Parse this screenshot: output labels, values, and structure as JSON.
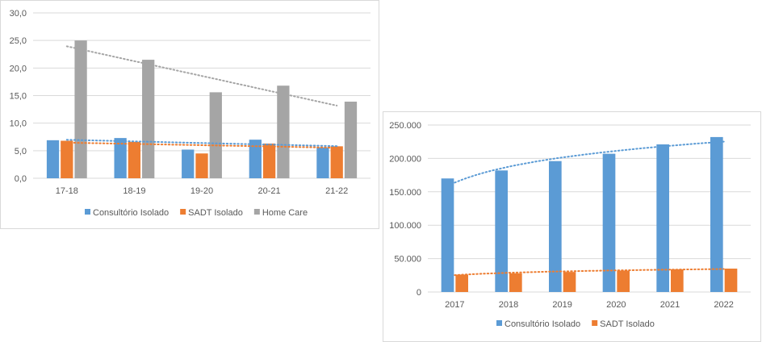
{
  "chart_data": [
    {
      "type": "bar",
      "categories": [
        "17-18",
        "18-19",
        "19-20",
        "20-21",
        "21-22"
      ],
      "series": [
        {
          "name": "Consultório Isolado",
          "color": "#5b9bd5",
          "values": [
            6.9,
            7.3,
            5.2,
            7.0,
            5.6
          ]
        },
        {
          "name": "SADT Isolado",
          "color": "#ed7d31",
          "values": [
            6.8,
            6.6,
            4.5,
            6.3,
            5.8
          ]
        },
        {
          "name": "Home Care",
          "color": "#a5a5a5",
          "values": [
            25.0,
            21.5,
            15.6,
            16.8,
            13.9
          ]
        }
      ],
      "y_ticks": [
        "0,0",
        "5,0",
        "10,0",
        "15,0",
        "20,0",
        "25,0",
        "30,0"
      ],
      "ylim": [
        0,
        30
      ],
      "trendlines": "linear, dotted, one per series",
      "legend_position": "bottom",
      "grid": true
    },
    {
      "type": "bar",
      "categories": [
        "2017",
        "2018",
        "2019",
        "2020",
        "2021",
        "2022"
      ],
      "series": [
        {
          "name": "Consultório Isolado",
          "color": "#5b9bd5",
          "values": [
            170000,
            182000,
            196000,
            207000,
            221000,
            232000
          ]
        },
        {
          "name": "SADT Isolado",
          "color": "#ed7d31",
          "values": [
            26000,
            28000,
            30000,
            32000,
            34000,
            35000
          ]
        }
      ],
      "y_ticks": [
        "0",
        "50.000",
        "100.000",
        "150.000",
        "200.000",
        "250.000"
      ],
      "ylim": [
        0,
        250000
      ],
      "trendlines": "logarithmic, dotted, one per series",
      "legend_position": "bottom",
      "grid": true
    }
  ]
}
